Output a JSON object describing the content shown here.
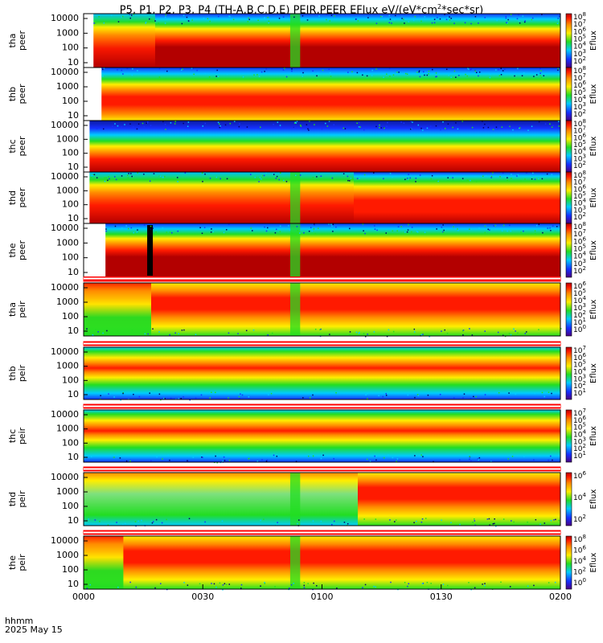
{
  "title": {
    "prefix": "P5, P1, P2, P3, P4 (TH-A,B,C,D,E) PEIR,PEER EFlux eV/(eV*cm",
    "sup": "2",
    "suffix": "*sec*sr)"
  },
  "time_axis": {
    "corner_top": "hhmm",
    "corner_bottom": "2025 May 15",
    "ticks": [
      {
        "label": "0000",
        "minutes": 0
      },
      {
        "label": "0030",
        "minutes": 30
      },
      {
        "label": "0100",
        "minutes": 60
      },
      {
        "label": "0130",
        "minutes": 90
      },
      {
        "label": "0200",
        "minutes": 120
      }
    ],
    "range_minutes": [
      0,
      120
    ]
  },
  "colorbar_label": "Eflux",
  "chart_data": [
    {
      "type": "heatmap",
      "name": "tha peer",
      "ylabel": [
        "tha",
        "peer"
      ],
      "y_scale": "log",
      "y_ticks": [
        "10000",
        "1000",
        "100",
        "10"
      ],
      "cb_ticks": [
        "10^8",
        "10^7",
        "10^6",
        "10^5",
        "10^4",
        "10^3",
        "10^2"
      ],
      "data_start_min": 2.5,
      "band_low_e": "dark red",
      "band_high_e": "green/blue, noisy"
    },
    {
      "type": "heatmap",
      "name": "thb peer",
      "ylabel": [
        "thb",
        "peer"
      ],
      "y_scale": "log",
      "y_ticks": [
        "10000",
        "1000",
        "100",
        "10"
      ],
      "cb_ticks": [
        "10^8",
        "10^7",
        "10^6",
        "10^5",
        "10^4",
        "10^3",
        "10^2"
      ],
      "data_start_min": 4.5
    },
    {
      "type": "heatmap",
      "name": "thc peer",
      "ylabel": [
        "thc",
        "peer"
      ],
      "y_scale": "log",
      "y_ticks": [
        "10000",
        "1000",
        "100",
        "10"
      ],
      "cb_ticks": [
        "10^8",
        "10^7",
        "10^6",
        "10^5",
        "10^4",
        "10^3",
        "10^2"
      ],
      "data_start_min": 1.5
    },
    {
      "type": "heatmap",
      "name": "thd peer",
      "ylabel": [
        "thd",
        "peer"
      ],
      "y_scale": "log",
      "y_ticks": [
        "10000",
        "1000",
        "100",
        "10"
      ],
      "cb_ticks": [
        "10^8",
        "10^7",
        "10^6",
        "10^5",
        "10^4",
        "10^3",
        "10^2"
      ],
      "data_start_min": 1.5
    },
    {
      "type": "heatmap",
      "name": "the peer",
      "ylabel": [
        "the",
        "peer"
      ],
      "y_scale": "log",
      "y_ticks": [
        "10000",
        "1000",
        "100",
        "10"
      ],
      "cb_ticks": [
        "10^8",
        "10^7",
        "10^6",
        "10^5",
        "10^4",
        "10^3",
        "10^2"
      ],
      "data_start_min": 5.5
    },
    {
      "type": "heatmap",
      "name": "tha peir",
      "ylabel": [
        "tha",
        "peir"
      ],
      "y_scale": "log",
      "y_ticks": [
        "10000",
        "1000",
        "100",
        "10"
      ],
      "cb_ticks": [
        "10^6",
        "10^5",
        "10^4",
        "10^3",
        "10^2",
        "10^1",
        "10^0"
      ],
      "data_start_min": 0
    },
    {
      "type": "heatmap",
      "name": "thb peir",
      "ylabel": [
        "thb",
        "peir"
      ],
      "y_scale": "log",
      "y_ticks": [
        "10000",
        "1000",
        "100",
        "10"
      ],
      "cb_ticks": [
        "10^7",
        "10^6",
        "10^5",
        "10^4",
        "10^3",
        "10^2",
        "10^1"
      ],
      "data_start_min": 0
    },
    {
      "type": "heatmap",
      "name": "thc peir",
      "ylabel": [
        "thc",
        "peir"
      ],
      "y_scale": "log",
      "y_ticks": [
        "10000",
        "1000",
        "100",
        "10"
      ],
      "cb_ticks": [
        "10^7",
        "10^6",
        "10^5",
        "10^4",
        "10^3",
        "10^2",
        "10^1"
      ],
      "data_start_min": 0
    },
    {
      "type": "heatmap",
      "name": "thd peir",
      "ylabel": [
        "thd",
        "peir"
      ],
      "y_scale": "log",
      "y_ticks": [
        "10000",
        "1000",
        "100",
        "10"
      ],
      "cb_ticks": [
        "10^6",
        "10^4",
        "10^2"
      ],
      "data_start_min": 0
    },
    {
      "type": "heatmap",
      "name": "the peir",
      "ylabel": [
        "the",
        "peir"
      ],
      "y_scale": "log",
      "y_ticks": [
        "10000",
        "1000",
        "100",
        "10"
      ],
      "cb_ticks": [
        "10^8",
        "10^6",
        "10^4",
        "10^2",
        "10^0"
      ],
      "data_start_min": 0
    }
  ],
  "colors": {
    "dark_red": "#b30000",
    "red": "#ff1a00",
    "orange": "#ff8c00",
    "yellow": "#ffee00",
    "green": "#22dd22",
    "cyan": "#00ccff",
    "blue": "#1530ff",
    "purple": "#5a00aa"
  }
}
